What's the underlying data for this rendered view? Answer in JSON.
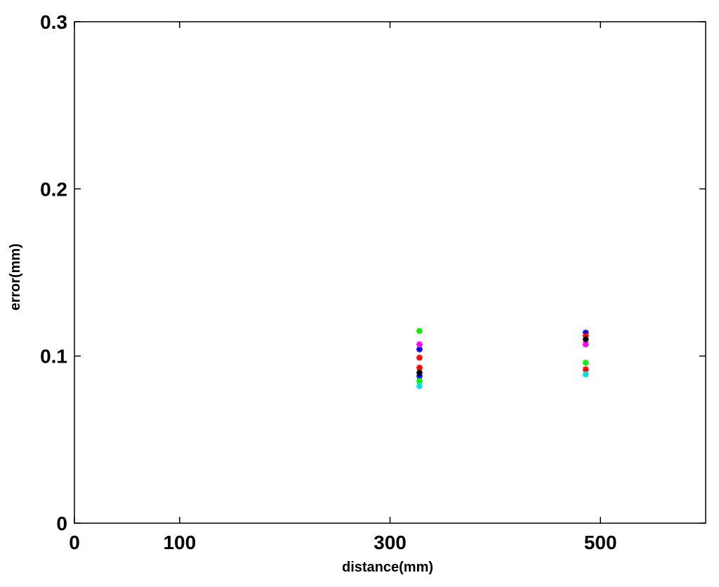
{
  "chart_data": {
    "type": "scatter",
    "xlabel": "distance(mm)",
    "ylabel": "error(mm)",
    "xlim": [
      0,
      600
    ],
    "xticks": [
      0,
      100,
      300,
      500
    ],
    "ylim": [
      0,
      0.3
    ],
    "yticks": [
      0,
      0.1,
      0.2,
      0.3
    ],
    "grid": false,
    "series": [
      {
        "color": "#0000ff",
        "x": [
          328,
          328,
          486
        ],
        "values": [
          0.104,
          0.088,
          0.114
        ]
      },
      {
        "color": "#ff0000",
        "x": [
          328,
          328,
          486,
          486
        ],
        "values": [
          0.099,
          0.093,
          0.112,
          0.092
        ]
      },
      {
        "color": "#00ee00",
        "x": [
          328,
          328,
          486
        ],
        "values": [
          0.115,
          0.085,
          0.096
        ]
      },
      {
        "color": "#ff00ff",
        "x": [
          328,
          486
        ],
        "values": [
          0.107,
          0.107
        ]
      },
      {
        "color": "#000000",
        "x": [
          328,
          486
        ],
        "values": [
          0.09,
          0.11
        ]
      },
      {
        "color": "#00dddd",
        "x": [
          328,
          486
        ],
        "values": [
          0.082,
          0.089
        ]
      }
    ]
  }
}
